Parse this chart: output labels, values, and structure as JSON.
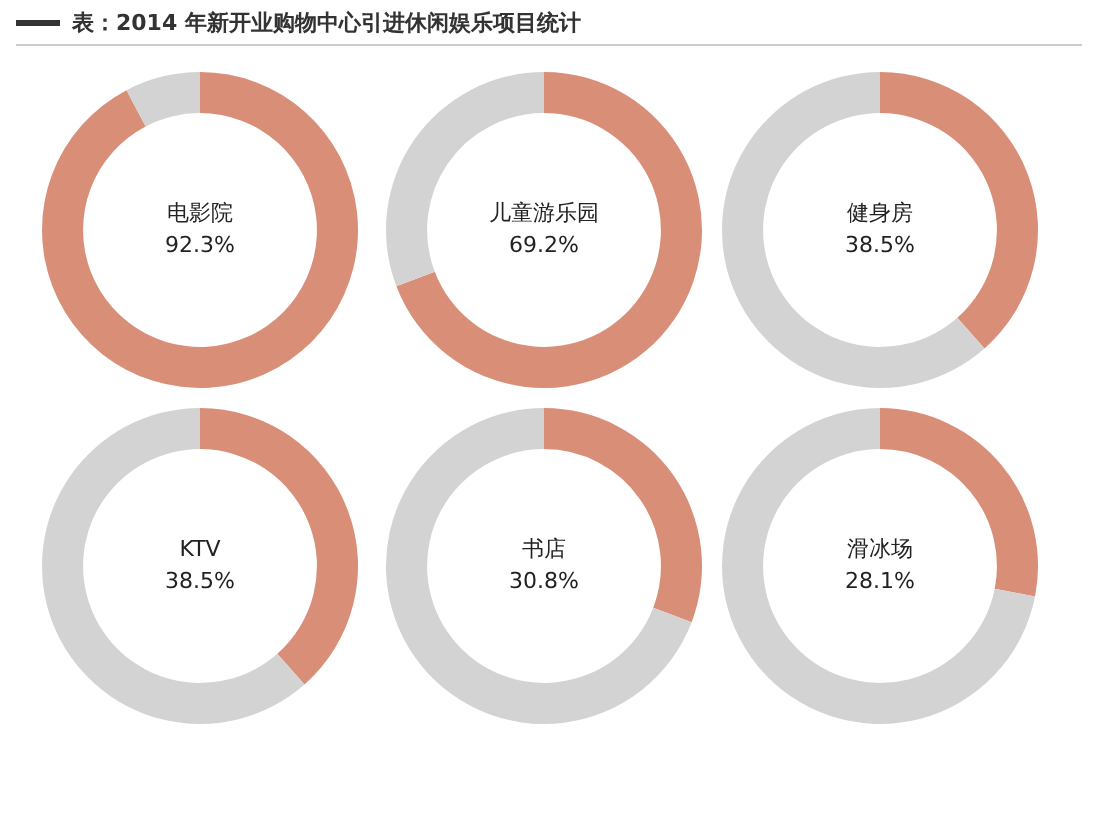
{
  "chart_data": [
    {
      "type": "donut",
      "title": "表：2014 年新开业购物中心引进休闲娱乐项目统计",
      "categories": [
        "电影院",
        null
      ],
      "values": [
        92.3,
        7.7
      ],
      "colors": [
        "#d98e78",
        "#d3d3d3"
      ],
      "value_labels": [
        "92.3%",
        null
      ]
    },
    {
      "type": "donut",
      "categories": [
        "儿童游乐园",
        null
      ],
      "values": [
        69.2,
        30.8
      ],
      "colors": [
        "#d98e78",
        "#d3d3d3"
      ],
      "value_labels": [
        "69.2%",
        null
      ]
    },
    {
      "type": "donut",
      "categories": [
        "健身房",
        null
      ],
      "values": [
        38.5,
        61.5
      ],
      "colors": [
        "#d98e78",
        "#d3d3d3"
      ],
      "value_labels": [
        "38.5%",
        null
      ]
    },
    {
      "type": "donut",
      "categories": [
        "KTV",
        null
      ],
      "values": [
        38.5,
        61.5
      ],
      "colors": [
        "#d98e78",
        "#d3d3d3"
      ],
      "value_labels": [
        "38.5%",
        null
      ]
    },
    {
      "type": "donut",
      "categories": [
        "书店",
        null
      ],
      "values": [
        30.8,
        69.2
      ],
      "colors": [
        "#d98e78",
        "#d3d3d3"
      ],
      "value_labels": [
        "30.8%",
        null
      ]
    },
    {
      "type": "donut",
      "categories": [
        "滑冰场",
        null
      ],
      "values": [
        28.1,
        71.9
      ],
      "colors": [
        "#d98e78",
        "#d3d3d3"
      ],
      "value_labels": [
        "28.1%",
        null
      ]
    }
  ]
}
